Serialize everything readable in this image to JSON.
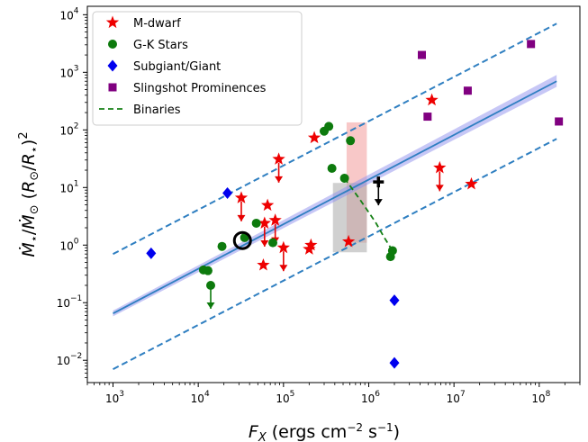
{
  "chart_data": {
    "type": "scatter",
    "title": "",
    "xlabel": "F_X (ergs cm^-2 s^-1)",
    "ylabel": "Ṁ⋆/Ṁ⊙ (R⊙/R⋆)^2",
    "xscale": "log",
    "yscale": "log",
    "xlim": [
      500,
      300000000
    ],
    "ylim": [
      0.0041,
      14000
    ],
    "xticks": [
      {
        "value": 1000,
        "base": "10",
        "exp": "3"
      },
      {
        "value": 10000,
        "base": "10",
        "exp": "4"
      },
      {
        "value": 100000,
        "base": "10",
        "exp": "5"
      },
      {
        "value": 1000000,
        "base": "10",
        "exp": "6"
      },
      {
        "value": 10000000,
        "base": "10",
        "exp": "7"
      },
      {
        "value": 100000000,
        "base": "10",
        "exp": "8"
      }
    ],
    "yticks": [
      {
        "value": 0.01,
        "base": "10",
        "exp": "−2"
      },
      {
        "value": 0.1,
        "base": "10",
        "exp": "−1"
      },
      {
        "value": 1,
        "base": "10",
        "exp": "0"
      },
      {
        "value": 10,
        "base": "10",
        "exp": "1"
      },
      {
        "value": 100,
        "base": "10",
        "exp": "2"
      },
      {
        "value": 1000,
        "base": "10",
        "exp": "3"
      },
      {
        "value": 10000,
        "base": "10",
        "exp": "4"
      }
    ],
    "legend_position": "top-left",
    "colors": {
      "mdwarf": "#ee0000",
      "gk": "#0d7a0d",
      "giant": "#0000ee",
      "slingshot": "#800080",
      "binaries": "#158015",
      "fit": "#2f7fc1",
      "band": "#9090ee",
      "dashed": "#2f7fc1",
      "red_box": "#f29a9a",
      "gray_box": "#aaaaaa",
      "upper_limit_arrow": "#e60000"
    },
    "series": [
      {
        "name": "M-dwarf",
        "marker": "star",
        "points": [
          [
            32000,
            6.6
          ],
          [
            65000,
            4.9
          ],
          [
            60000,
            2.4
          ],
          [
            80000,
            2.7
          ],
          [
            88000,
            31
          ],
          [
            100000,
            0.9
          ],
          [
            58000,
            0.45
          ],
          [
            200000,
            0.85
          ],
          [
            210000,
            1.0
          ],
          [
            230000,
            73
          ],
          [
            580000,
            1.15
          ],
          [
            5500000,
            330
          ],
          [
            6800000,
            22
          ],
          [
            16000000,
            11.5
          ]
        ],
        "upper_limits": [
          [
            32000,
            6.6
          ],
          [
            60000,
            2.4
          ],
          [
            80000,
            2.7
          ],
          [
            88000,
            31
          ],
          [
            100000,
            0.9
          ],
          [
            6800000,
            22
          ]
        ]
      },
      {
        "name": "G-K Stars",
        "marker": "circle",
        "points": [
          [
            11500,
            0.37
          ],
          [
            13000,
            0.36
          ],
          [
            14000,
            0.2
          ],
          [
            19000,
            0.95
          ],
          [
            35000,
            1.35
          ],
          [
            48000,
            2.4
          ],
          [
            75000,
            1.1
          ],
          [
            300000,
            95
          ],
          [
            340000,
            115
          ],
          [
            370000,
            21.5
          ],
          [
            520000,
            14.5
          ],
          [
            610000,
            65
          ],
          [
            1800000,
            0.63
          ],
          [
            1900000,
            0.8
          ]
        ],
        "upper_limits": [
          [
            14000,
            0.2
          ]
        ]
      },
      {
        "name": "Subgiant/Giant",
        "marker": "diamond",
        "points": [
          [
            2800,
            0.72
          ],
          [
            22000,
            8.0
          ],
          [
            2000000,
            0.11
          ],
          [
            2000000,
            0.009
          ]
        ]
      },
      {
        "name": "Slingshot Prominences",
        "marker": "square",
        "points": [
          [
            4200000,
            2000
          ],
          [
            4900000,
            170
          ],
          [
            14500000,
            480
          ],
          [
            80000000,
            3100
          ],
          [
            170000000,
            140
          ]
        ]
      },
      {
        "name": "Binaries",
        "marker": "dashed-line",
        "points": [
          [
            520000,
            14.5
          ],
          [
            800000,
            6.0
          ],
          [
            1200000,
            2.5
          ],
          [
            1500000,
            1.4
          ],
          [
            1900000,
            0.8
          ]
        ]
      }
    ],
    "extra_markers": [
      {
        "type": "upper_limit_plus",
        "x": 1300000,
        "y": 12.5,
        "color": "#000000"
      },
      {
        "type": "open_circle",
        "x": 33000,
        "y": 1.2,
        "color": "#000000"
      }
    ],
    "shaded_regions": [
      {
        "x": [
          550000,
          950000
        ],
        "y": [
          1.1,
          135
        ],
        "color": "red_box"
      },
      {
        "x": [
          380000,
          950000
        ],
        "y": [
          0.75,
          12
        ],
        "color": "gray_box"
      }
    ],
    "fit_line": {
      "x": [
        1000,
        160000000
      ],
      "y": [
        0.065,
        700
      ]
    },
    "fit_band": {
      "x": [
        1000,
        160000000
      ],
      "y_low": [
        0.058,
        560
      ],
      "y_high": [
        0.073,
        900
      ]
    },
    "dashed_lines": [
      {
        "x": [
          1000,
          160000000
        ],
        "y": [
          0.7,
          7000
        ]
      },
      {
        "x": [
          1000,
          160000000
        ],
        "y": [
          0.007,
          70
        ]
      }
    ]
  }
}
